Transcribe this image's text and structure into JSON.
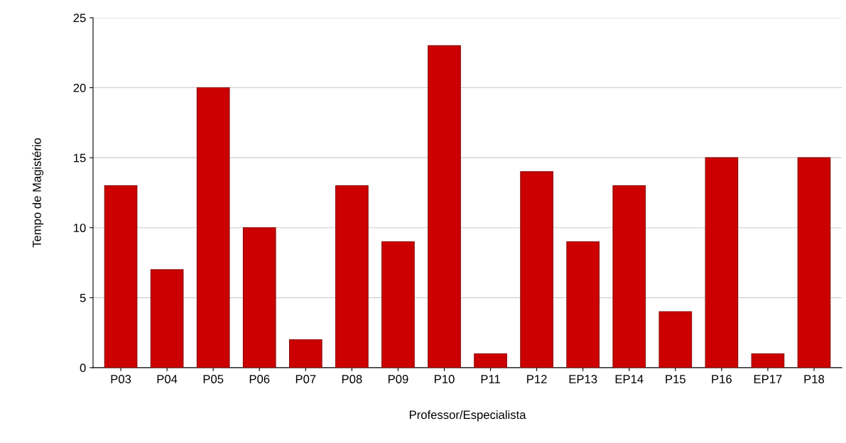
{
  "chart_data": {
    "type": "bar",
    "xlabel": "Professor/Especialista",
    "ylabel": "Tempo de Magistério",
    "categories": [
      "P03",
      "P04",
      "P05",
      "P06",
      "P07",
      "P08",
      "P09",
      "P10",
      "P11",
      "P12",
      "EP13",
      "EP14",
      "P15",
      "P16",
      "EP17",
      "P18"
    ],
    "values": [
      13,
      7,
      20,
      10,
      2,
      13,
      9,
      23,
      1,
      14,
      9,
      13,
      4,
      15,
      1,
      15
    ],
    "color": "#cc0000",
    "ylim": [
      0,
      25
    ],
    "yticks": [
      0,
      5,
      10,
      15,
      20,
      25
    ],
    "grid": "y",
    "legend": false
  }
}
